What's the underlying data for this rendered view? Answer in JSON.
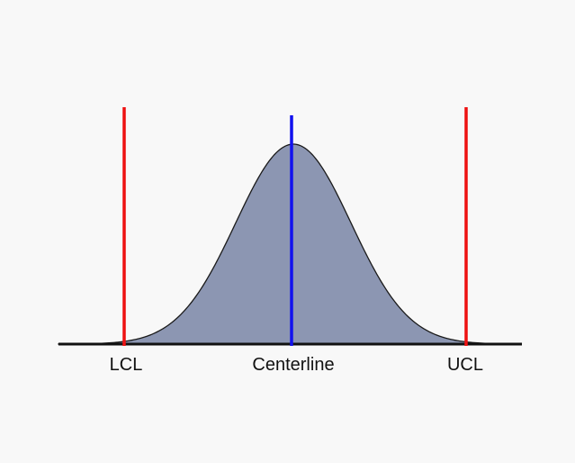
{
  "diagram": {
    "labels": {
      "lcl": "LCL",
      "centerline": "Centerline",
      "ucl": "UCL"
    },
    "colors": {
      "background": "#f8f8f8",
      "curve_fill": "#8c96b2",
      "curve_stroke": "#1a1a1a",
      "baseline": "#111111",
      "limit_lines": "#ee1111",
      "center_line": "#1111ee"
    }
  }
}
